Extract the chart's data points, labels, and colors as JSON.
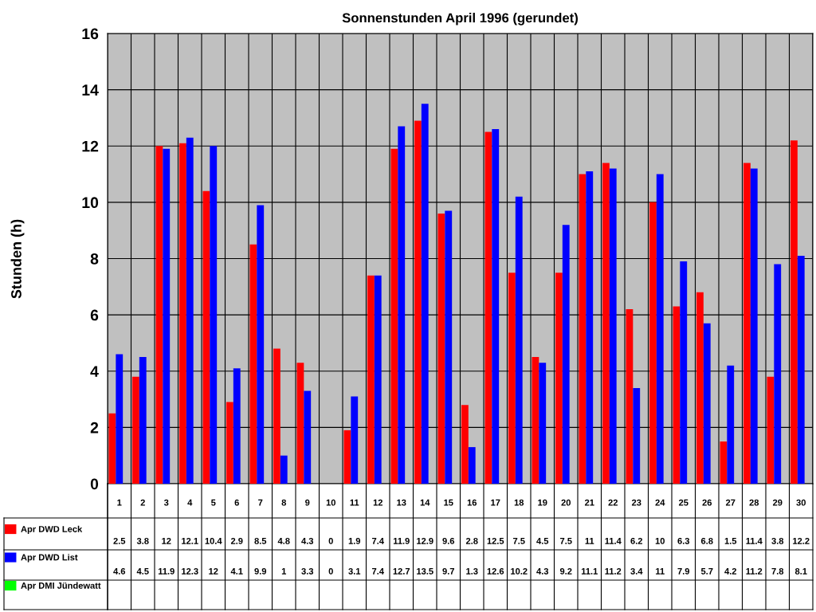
{
  "chart_data": {
    "type": "bar",
    "title": "Sonnenstunden April 1996 (gerundet)",
    "ylabel": "Stunden (h)",
    "categories": [
      "1",
      "2",
      "3",
      "4",
      "5",
      "6",
      "7",
      "8",
      "9",
      "10",
      "11",
      "12",
      "13",
      "14",
      "15",
      "16",
      "17",
      "18",
      "19",
      "20",
      "21",
      "22",
      "23",
      "24",
      "25",
      "26",
      "27",
      "28",
      "29",
      "30"
    ],
    "series": [
      {
        "name": "Apr DWD Leck",
        "color": "#ff0000",
        "values": [
          2.5,
          3.8,
          12,
          12.1,
          10.4,
          2.9,
          8.5,
          4.8,
          4.3,
          0,
          1.9,
          7.4,
          11.9,
          12.9,
          9.6,
          2.8,
          12.5,
          7.5,
          4.5,
          7.5,
          11,
          11.4,
          6.2,
          10,
          6.3,
          6.8,
          1.5,
          11.4,
          3.8,
          12.2
        ]
      },
      {
        "name": "Apr DWD List",
        "color": "#0000ff",
        "values": [
          4.6,
          4.5,
          11.9,
          12.3,
          12,
          4.1,
          9.9,
          1,
          3.3,
          0,
          3.1,
          7.4,
          12.7,
          13.5,
          9.7,
          1.3,
          12.6,
          10.2,
          4.3,
          9.2,
          11.1,
          11.2,
          3.4,
          11,
          7.9,
          5.7,
          4.2,
          11.2,
          7.8,
          8.1
        ]
      },
      {
        "name": "Apr DMI Jündewatt",
        "color": "#00ff00",
        "values": [
          null,
          null,
          null,
          null,
          null,
          null,
          null,
          null,
          null,
          null,
          null,
          null,
          null,
          null,
          null,
          null,
          null,
          null,
          null,
          null,
          null,
          null,
          null,
          null,
          null,
          null,
          null,
          null,
          null,
          null
        ]
      }
    ],
    "ylim": [
      0,
      16
    ],
    "yticks": [
      0,
      2,
      4,
      6,
      8,
      10,
      12,
      14,
      16
    ],
    "grid": true,
    "data_labels": true,
    "legend": "bottom"
  }
}
